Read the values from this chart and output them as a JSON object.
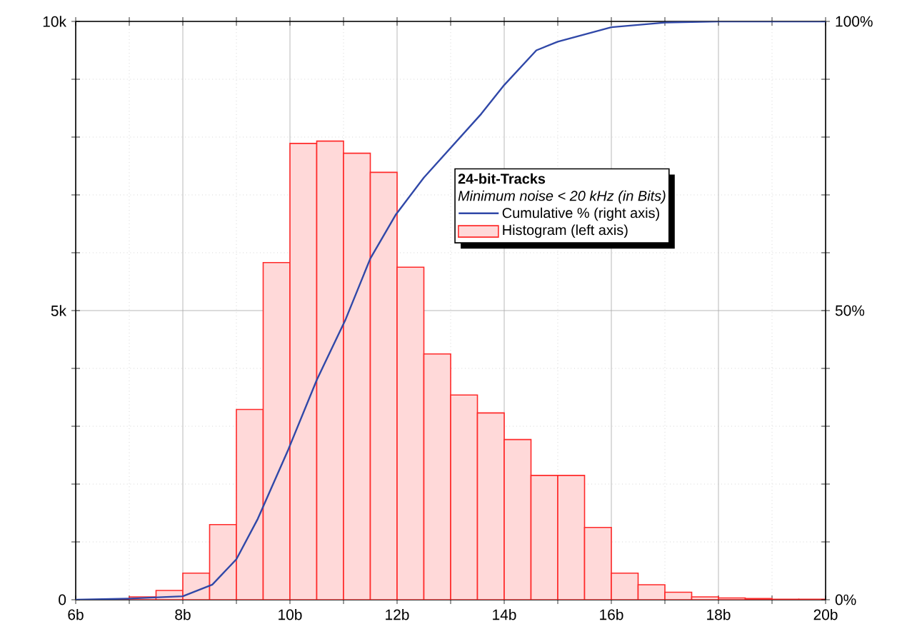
{
  "chart_data": {
    "type": "histogram",
    "title": "24-bit-Tracks",
    "subtitle": "Minimum noise < 20 kHz (in Bits)",
    "series": [
      {
        "type": "histogram",
        "name": "Histogram (left axis)",
        "color": "#ff2a2a",
        "bins": [
          6,
          6.5,
          7,
          7.5,
          8,
          8.5,
          9,
          9.5,
          10,
          10.5,
          11,
          11.5,
          12,
          12.5,
          13,
          13.5,
          14,
          14.5,
          15,
          15.5,
          16,
          16.5,
          17,
          17.5,
          18,
          18.5,
          19,
          19.5,
          20
        ],
        "values": [
          0,
          0,
          0.05,
          0.16,
          0.46,
          1.3,
          3.29,
          5.83,
          7.89,
          7.93,
          7.72,
          7.39,
          5.75,
          4.25,
          3.54,
          3.23,
          2.77,
          2.15,
          2.15,
          1.25,
          0.46,
          0.26,
          0.13,
          0.05,
          0.03,
          0.02,
          0.01,
          0.01
        ]
      },
      {
        "type": "line",
        "name": "Cumulative % (right axis)",
        "axis": "y2",
        "color": "#3048a8",
        "x": [
          6,
          7,
          8,
          8.55,
          9,
          9.4,
          9.97,
          10.5,
          11.04,
          11.5,
          11.97,
          12.5,
          13.57,
          14,
          14.6,
          15,
          16,
          17,
          18,
          20
        ],
        "values": [
          0,
          0.2,
          0.6,
          2.6,
          7,
          14,
          26,
          38,
          48.5,
          59,
          66.5,
          73,
          84,
          89,
          95,
          96.5,
          99,
          99.8,
          100,
          100
        ]
      }
    ],
    "xlim": [
      6,
      20
    ],
    "xticks": [
      {
        "value": 6,
        "label": "6b"
      },
      {
        "value": 7,
        "label": null
      },
      {
        "value": 8,
        "label": "8b"
      },
      {
        "value": 9,
        "label": null
      },
      {
        "value": 10,
        "label": "10b"
      },
      {
        "value": 11,
        "label": null
      },
      {
        "value": 12,
        "label": "12b"
      },
      {
        "value": 13,
        "label": null
      },
      {
        "value": 14,
        "label": "14b"
      },
      {
        "value": 15,
        "label": null
      },
      {
        "value": 16,
        "label": "16b"
      },
      {
        "value": 17,
        "label": null
      },
      {
        "value": 18,
        "label": "18b"
      },
      {
        "value": 19,
        "label": null
      },
      {
        "value": 20,
        "label": "20b"
      }
    ],
    "ylim": [
      0,
      10
    ],
    "yticks": [
      0,
      {
        "value": 1,
        "label": null
      },
      {
        "value": 2,
        "label": null
      },
      {
        "value": 3,
        "label": null
      },
      {
        "value": 4,
        "label": null
      },
      {
        "value": 5,
        "label": "5k"
      },
      {
        "value": 6,
        "label": null
      },
      {
        "value": 7,
        "label": null
      },
      {
        "value": 8,
        "label": null
      },
      {
        "value": 9,
        "label": null
      },
      {
        "value": 10,
        "label": "10k"
      }
    ],
    "y2lim": [
      0,
      100
    ],
    "y2ticks": [
      {
        "value": 0,
        "label": "0%"
      },
      {
        "value": 10,
        "label": null
      },
      {
        "value": 20,
        "label": null
      },
      {
        "value": 30,
        "label": null
      },
      {
        "value": 40,
        "label": null
      },
      {
        "value": 50,
        "label": "50%"
      },
      {
        "value": 60,
        "label": null
      },
      {
        "value": 70,
        "label": null
      },
      {
        "value": 80,
        "label": null
      },
      {
        "value": 90,
        "label": null
      },
      {
        "value": 100,
        "label": "100%"
      }
    ],
    "grid": true,
    "legend": "top right",
    "marker": "none",
    "line_style": "solid"
  }
}
